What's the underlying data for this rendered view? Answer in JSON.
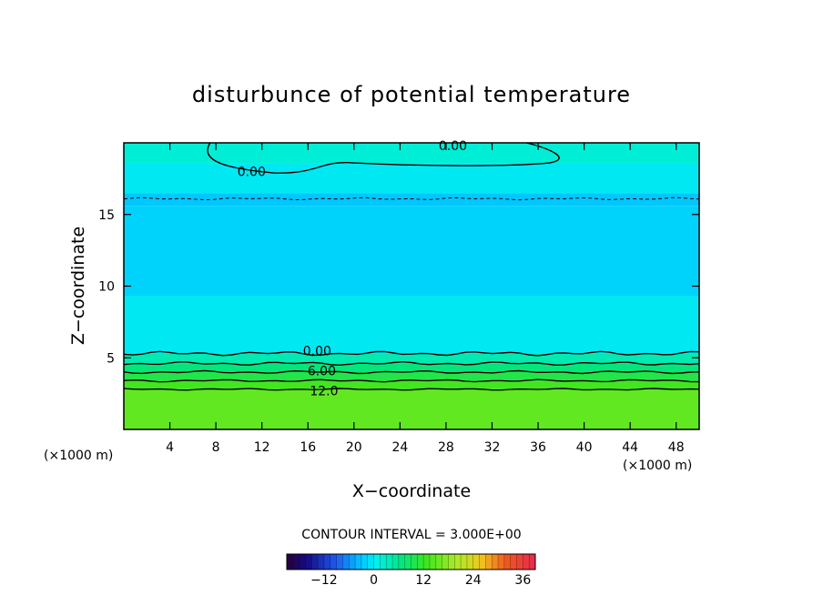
{
  "chart_data": {
    "type": "heatmap",
    "title": "disturbunce of potential temperature",
    "xlabel": "X−coordinate",
    "ylabel": "Z−coordinate",
    "x_unit": "(×1000 m)",
    "y_unit": "(×1000 m)",
    "xlim": [
      0,
      50
    ],
    "ylim": [
      0,
      20
    ],
    "x_ticks": [
      "4",
      "8",
      "12",
      "16",
      "20",
      "24",
      "28",
      "32",
      "36",
      "40",
      "44",
      "48"
    ],
    "x_tick_values": [
      4,
      8,
      12,
      16,
      20,
      24,
      28,
      32,
      36,
      40,
      44,
      48
    ],
    "y_ticks": [
      "5",
      "10",
      "15"
    ],
    "y_tick_values": [
      5,
      10,
      15
    ],
    "contour_interval_text": "CONTOUR INTERVAL = 3.000E+00",
    "contour_interval": 3.0,
    "contour_labels": [
      {
        "text": "0.00",
        "x": 28.6,
        "z": 19.8
      },
      {
        "text": "0.00",
        "x": 11.1,
        "z": 18.0
      },
      {
        "text": "0.00",
        "x": 16.8,
        "z": 5.5
      },
      {
        "text": "6.00",
        "x": 17.2,
        "z": 4.1
      },
      {
        "text": "12.0",
        "x": 17.4,
        "z": 2.7
      }
    ],
    "bands": [
      {
        "z0": 0.0,
        "z1": 2.8,
        "value": 15
      },
      {
        "z0": 2.8,
        "z1": 3.4,
        "value": 13
      },
      {
        "z0": 3.4,
        "z1": 4.0,
        "value": 10
      },
      {
        "z0": 4.0,
        "z1": 4.6,
        "value": 7
      },
      {
        "z0": 4.6,
        "z1": 5.3,
        "value": 4
      },
      {
        "z0": 5.3,
        "z1": 9.3,
        "value": 0
      },
      {
        "z0": 9.3,
        "z1": 15.6,
        "value": -2
      },
      {
        "z0": 15.6,
        "z1": 16.5,
        "value": -3
      },
      {
        "z0": 16.5,
        "z1": 18.6,
        "value": 0
      },
      {
        "z0": 18.6,
        "z1": 20.0,
        "value": 2
      }
    ],
    "colorbar": {
      "min": -21,
      "max": 39,
      "ticks": [
        "−12",
        "0",
        "12",
        "24",
        "36"
      ],
      "tick_values": [
        -12,
        0,
        12,
        24,
        36
      ]
    }
  }
}
